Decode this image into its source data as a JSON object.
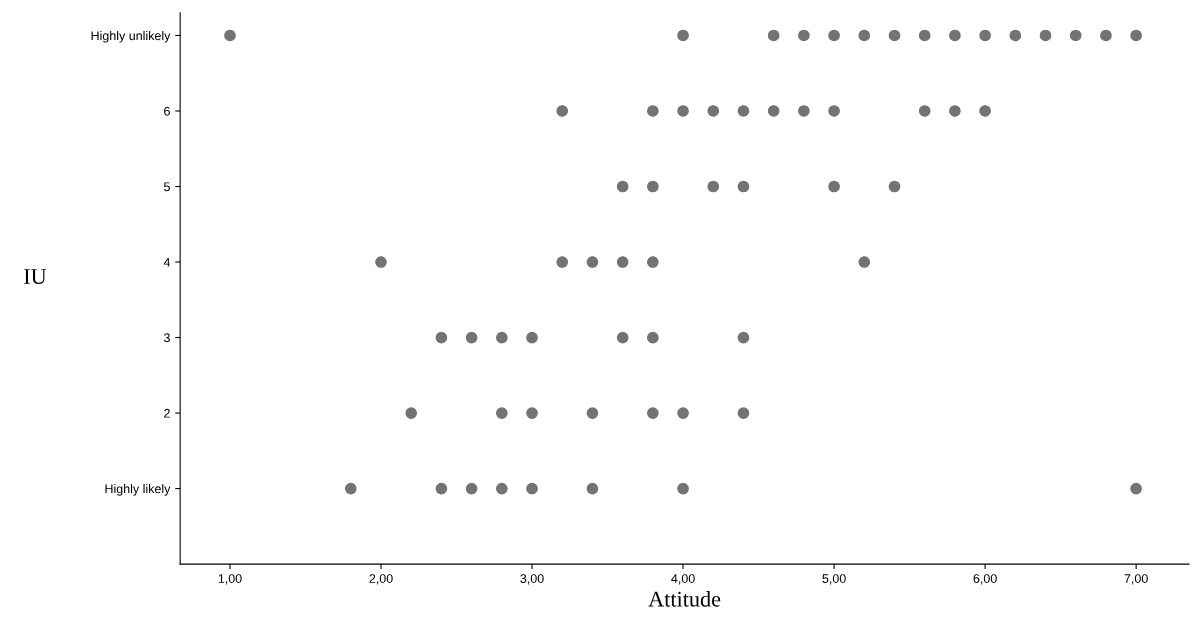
{
  "chart_data": {
    "type": "scatter",
    "xlabel": "Attitude",
    "ylabel": "IU",
    "marker": "circle",
    "grid": false,
    "legend": false,
    "xlim": [
      0.67,
      7.35
    ],
    "ylim": [
      0,
      7.3
    ],
    "xticks": [
      {
        "value": 1,
        "label": "1,00"
      },
      {
        "value": 2,
        "label": "2,00"
      },
      {
        "value": 3,
        "label": "3,00"
      },
      {
        "value": 4,
        "label": "4,00"
      },
      {
        "value": 5,
        "label": "5,00"
      },
      {
        "value": 6,
        "label": "6,00"
      },
      {
        "value": 7,
        "label": "7,00"
      }
    ],
    "yticks": [
      {
        "value": 1,
        "label": "Highly likely"
      },
      2,
      3,
      4,
      5,
      6,
      {
        "value": 7,
        "label": "Highly unlikely"
      }
    ],
    "series": [
      {
        "color": "#737373",
        "x": [
          1.0,
          4.0,
          4.6,
          4.8,
          5.0,
          5.2,
          5.4,
          5.6,
          5.8,
          6.0,
          6.2,
          6.4,
          6.6,
          6.8,
          7.0,
          3.2,
          3.8,
          4.0,
          4.2,
          4.4,
          4.6,
          4.8,
          5.0,
          5.6,
          5.8,
          6.0,
          3.6,
          3.8,
          4.2,
          4.4,
          5.0,
          5.4,
          2.0,
          3.2,
          3.4,
          3.6,
          3.8,
          5.2,
          2.4,
          2.6,
          2.8,
          3.0,
          3.6,
          3.8,
          4.4,
          2.2,
          2.8,
          3.0,
          3.4,
          3.8,
          4.0,
          4.4,
          1.8,
          2.4,
          2.6,
          2.8,
          3.0,
          3.4,
          4.0,
          7.0
        ],
        "values": [
          7,
          7,
          7,
          7,
          7,
          7,
          7,
          7,
          7,
          7,
          7,
          7,
          7,
          7,
          7,
          6,
          6,
          6,
          6,
          6,
          6,
          6,
          6,
          6,
          6,
          6,
          5,
          5,
          5,
          5,
          5,
          5,
          4,
          4,
          4,
          4,
          4,
          4,
          3,
          3,
          3,
          3,
          3,
          3,
          3,
          2,
          2,
          2,
          2,
          2,
          2,
          2,
          1,
          1,
          1,
          1,
          1,
          1,
          1,
          1
        ]
      }
    ]
  }
}
